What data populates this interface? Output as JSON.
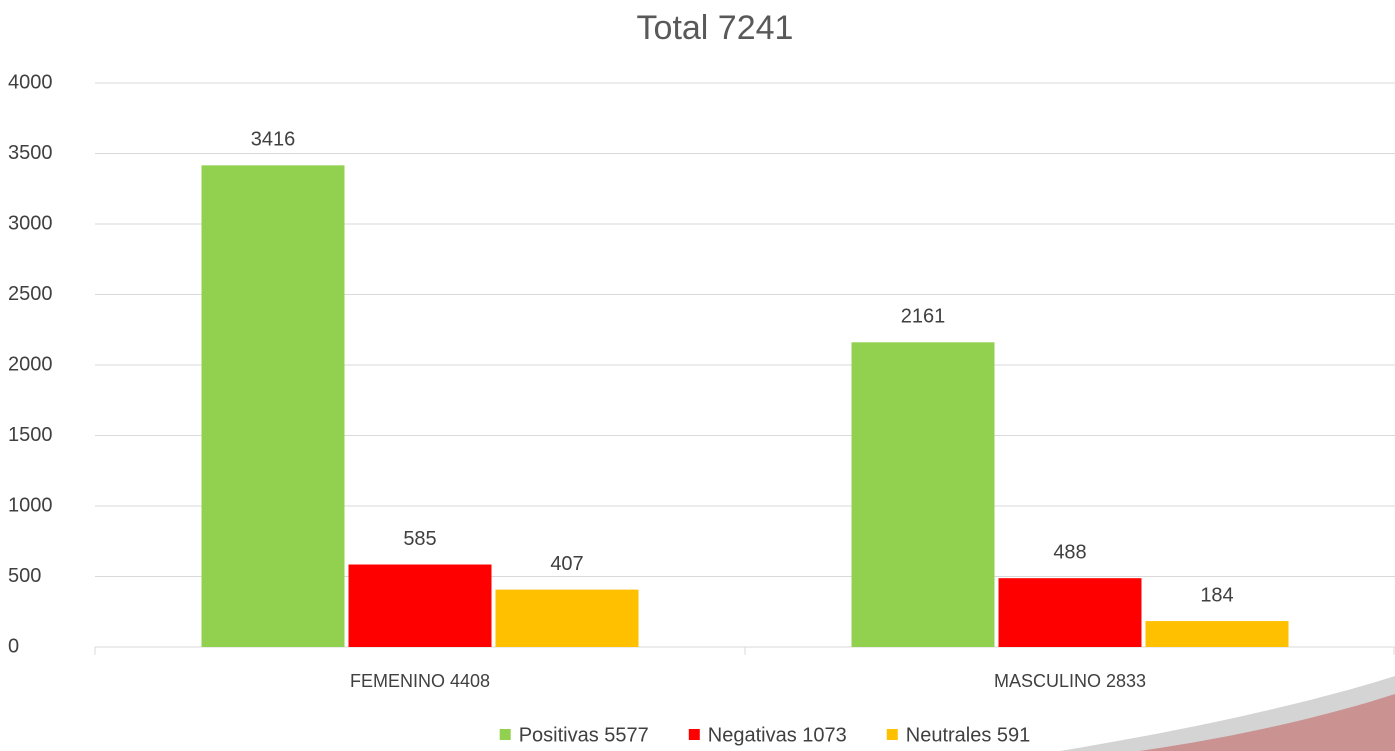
{
  "chart_data": {
    "type": "bar",
    "title": "Total 7241",
    "categories": [
      "FEMENINO 4408",
      "MASCULINO 2833"
    ],
    "series": [
      {
        "name": "Positivas 5577",
        "color": "#92d050",
        "values": [
          3416,
          2161
        ]
      },
      {
        "name": "Negativas 1073",
        "color": "#ff0000",
        "values": [
          585,
          488
        ]
      },
      {
        "name": "Neutrales 591",
        "color": "#ffc000",
        "values": [
          407,
          184
        ]
      }
    ],
    "ylim": [
      0,
      4000
    ],
    "yticks": [
      0,
      500,
      1000,
      1500,
      2000,
      2500,
      3000,
      3500,
      4000
    ],
    "grid": true,
    "legend": "bottom"
  }
}
